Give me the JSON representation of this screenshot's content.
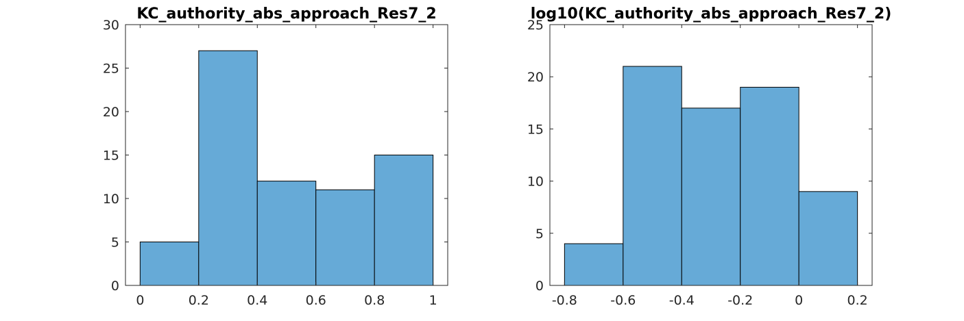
{
  "chart_data": [
    {
      "type": "bar",
      "title": "KC_authority_abs_approach_Res7_2",
      "xlabel": "",
      "ylabel": "",
      "bin_edges": [
        0,
        0.2,
        0.4,
        0.6,
        0.8,
        1.0
      ],
      "values": [
        5,
        27,
        12,
        11,
        15
      ],
      "xlim": [
        -0.05,
        1.05
      ],
      "ylim": [
        0,
        30
      ],
      "xticks": [
        0,
        0.2,
        0.4,
        0.6,
        0.8,
        1
      ],
      "xtick_labels": [
        "0",
        "0.2",
        "0.4",
        "0.6",
        "0.8",
        "1"
      ],
      "yticks": [
        0,
        5,
        10,
        15,
        20,
        25,
        30
      ],
      "ytick_labels": [
        "0",
        "5",
        "10",
        "15",
        "20",
        "25",
        "30"
      ],
      "bar_color": "#66aad7",
      "grid": false
    },
    {
      "type": "bar",
      "title": "log10(KC_authority_abs_approach_Res7_2)",
      "xlabel": "",
      "ylabel": "",
      "bin_edges": [
        -0.8,
        -0.6,
        -0.4,
        -0.2,
        0,
        0.2
      ],
      "values": [
        4,
        21,
        17,
        19,
        9
      ],
      "xlim": [
        -0.85,
        0.25
      ],
      "ylim": [
        0,
        25
      ],
      "xticks": [
        -0.8,
        -0.6,
        -0.4,
        -0.2,
        0,
        0.2
      ],
      "xtick_labels": [
        "-0.8",
        "-0.6",
        "-0.4",
        "-0.2",
        "0",
        "0.2"
      ],
      "yticks": [
        0,
        5,
        10,
        15,
        20,
        25
      ],
      "ytick_labels": [
        "0",
        "5",
        "10",
        "15",
        "20",
        "25"
      ],
      "bar_color": "#66aad7",
      "grid": false
    }
  ]
}
